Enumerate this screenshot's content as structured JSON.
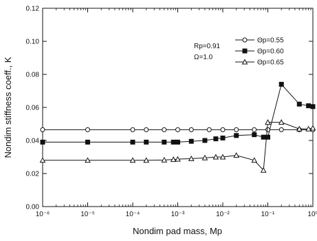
{
  "chart_data": {
    "type": "line",
    "title": "",
    "xlabel": "Nondim pad mass, Mp",
    "ylabel": "Nondim stiffness coeff., K",
    "x_scale": "log",
    "xlim": [
      1e-06,
      1
    ],
    "ylim": [
      0.0,
      0.12
    ],
    "x_ticks": [
      1e-06,
      1e-05,
      0.0001,
      0.001,
      0.01,
      0.1,
      1
    ],
    "x_tick_labels": [
      "10⁻⁶",
      "10⁻⁵",
      "10⁻⁴",
      "10⁻³",
      "10⁻²",
      "10⁻¹",
      "10⁰"
    ],
    "y_ticks": [
      0.0,
      0.02,
      0.04,
      0.06,
      0.08,
      0.1,
      0.12
    ],
    "y_tick_labels": [
      "0.00",
      "0.02",
      "0.04",
      "0.06",
      "0.08",
      "0.10",
      "0.12"
    ],
    "grid": false,
    "legend_position": "top-right",
    "annotations": [
      "Rp=0.91",
      "Ω=1.0"
    ],
    "series": [
      {
        "name": "Θp=0.55",
        "marker": "open-circle",
        "points": [
          [
            1e-06,
            0.0465
          ],
          [
            1e-05,
            0.0465
          ],
          [
            0.0001,
            0.0465
          ],
          [
            0.0002,
            0.0465
          ],
          [
            0.0005,
            0.0465
          ],
          [
            0.001,
            0.0465
          ],
          [
            0.002,
            0.0465
          ],
          [
            0.005,
            0.0465
          ],
          [
            0.01,
            0.0465
          ],
          [
            0.02,
            0.0465
          ],
          [
            0.05,
            0.0465
          ],
          [
            0.1,
            0.0465
          ],
          [
            0.2,
            0.0465
          ],
          [
            0.5,
            0.0465
          ],
          [
            1,
            0.0465
          ]
        ]
      },
      {
        "name": "Θp=0.60",
        "marker": "filled-square",
        "points": [
          [
            1e-06,
            0.039
          ],
          [
            1e-05,
            0.039
          ],
          [
            0.0001,
            0.039
          ],
          [
            0.0002,
            0.039
          ],
          [
            0.0005,
            0.039
          ],
          [
            0.0008,
            0.039
          ],
          [
            0.001,
            0.039
          ],
          [
            0.002,
            0.0395
          ],
          [
            0.004,
            0.04
          ],
          [
            0.007,
            0.041
          ],
          [
            0.01,
            0.0415
          ],
          [
            0.02,
            0.043
          ],
          [
            0.05,
            0.0435
          ],
          [
            0.08,
            0.042
          ],
          [
            0.1,
            0.042
          ],
          [
            0.2,
            0.074
          ],
          [
            0.5,
            0.062
          ],
          [
            0.8,
            0.061
          ],
          [
            1,
            0.0605
          ]
        ]
      },
      {
        "name": "Θp=0.65",
        "marker": "open-triangle",
        "points": [
          [
            1e-06,
            0.028
          ],
          [
            1e-05,
            0.028
          ],
          [
            0.0001,
            0.028
          ],
          [
            0.0002,
            0.028
          ],
          [
            0.0005,
            0.0282
          ],
          [
            0.0008,
            0.0285
          ],
          [
            0.001,
            0.0287
          ],
          [
            0.002,
            0.029
          ],
          [
            0.004,
            0.0295
          ],
          [
            0.007,
            0.03
          ],
          [
            0.01,
            0.03
          ],
          [
            0.02,
            0.031
          ],
          [
            0.05,
            0.028
          ],
          [
            0.08,
            0.022
          ],
          [
            0.1,
            0.051
          ],
          [
            0.2,
            0.051
          ],
          [
            0.5,
            0.047
          ],
          [
            0.8,
            0.047
          ],
          [
            1,
            0.0475
          ]
        ]
      }
    ]
  }
}
